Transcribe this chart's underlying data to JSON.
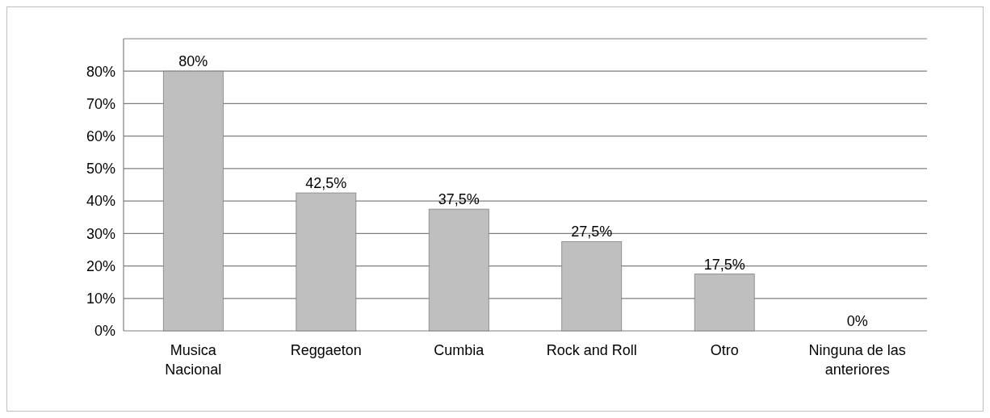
{
  "chart_data": {
    "type": "bar",
    "categories": [
      "Musica Nacional",
      "Reggaeton",
      "Cumbia",
      "Rock and Roll",
      "Otro",
      "Ninguna de las anteriores"
    ],
    "values": [
      80,
      42.5,
      37.5,
      27.5,
      17.5,
      0
    ],
    "value_labels": [
      "80%",
      "42,5%",
      "37,5%",
      "27,5%",
      "17,5%",
      "0%"
    ],
    "color": "#bfbfbf",
    "ylim": [
      0,
      90
    ],
    "yticks": [
      {
        "value": 0,
        "label": "0%"
      },
      {
        "value": 10,
        "label": "10%"
      },
      {
        "value": 20,
        "label": "20%"
      },
      {
        "value": 30,
        "label": "30%"
      },
      {
        "value": 40,
        "label": "40%"
      },
      {
        "value": 50,
        "label": "50%"
      },
      {
        "value": 60,
        "label": "60%"
      },
      {
        "value": 70,
        "label": "70%"
      },
      {
        "value": 80,
        "label": "80%"
      }
    ],
    "grid": "y"
  }
}
